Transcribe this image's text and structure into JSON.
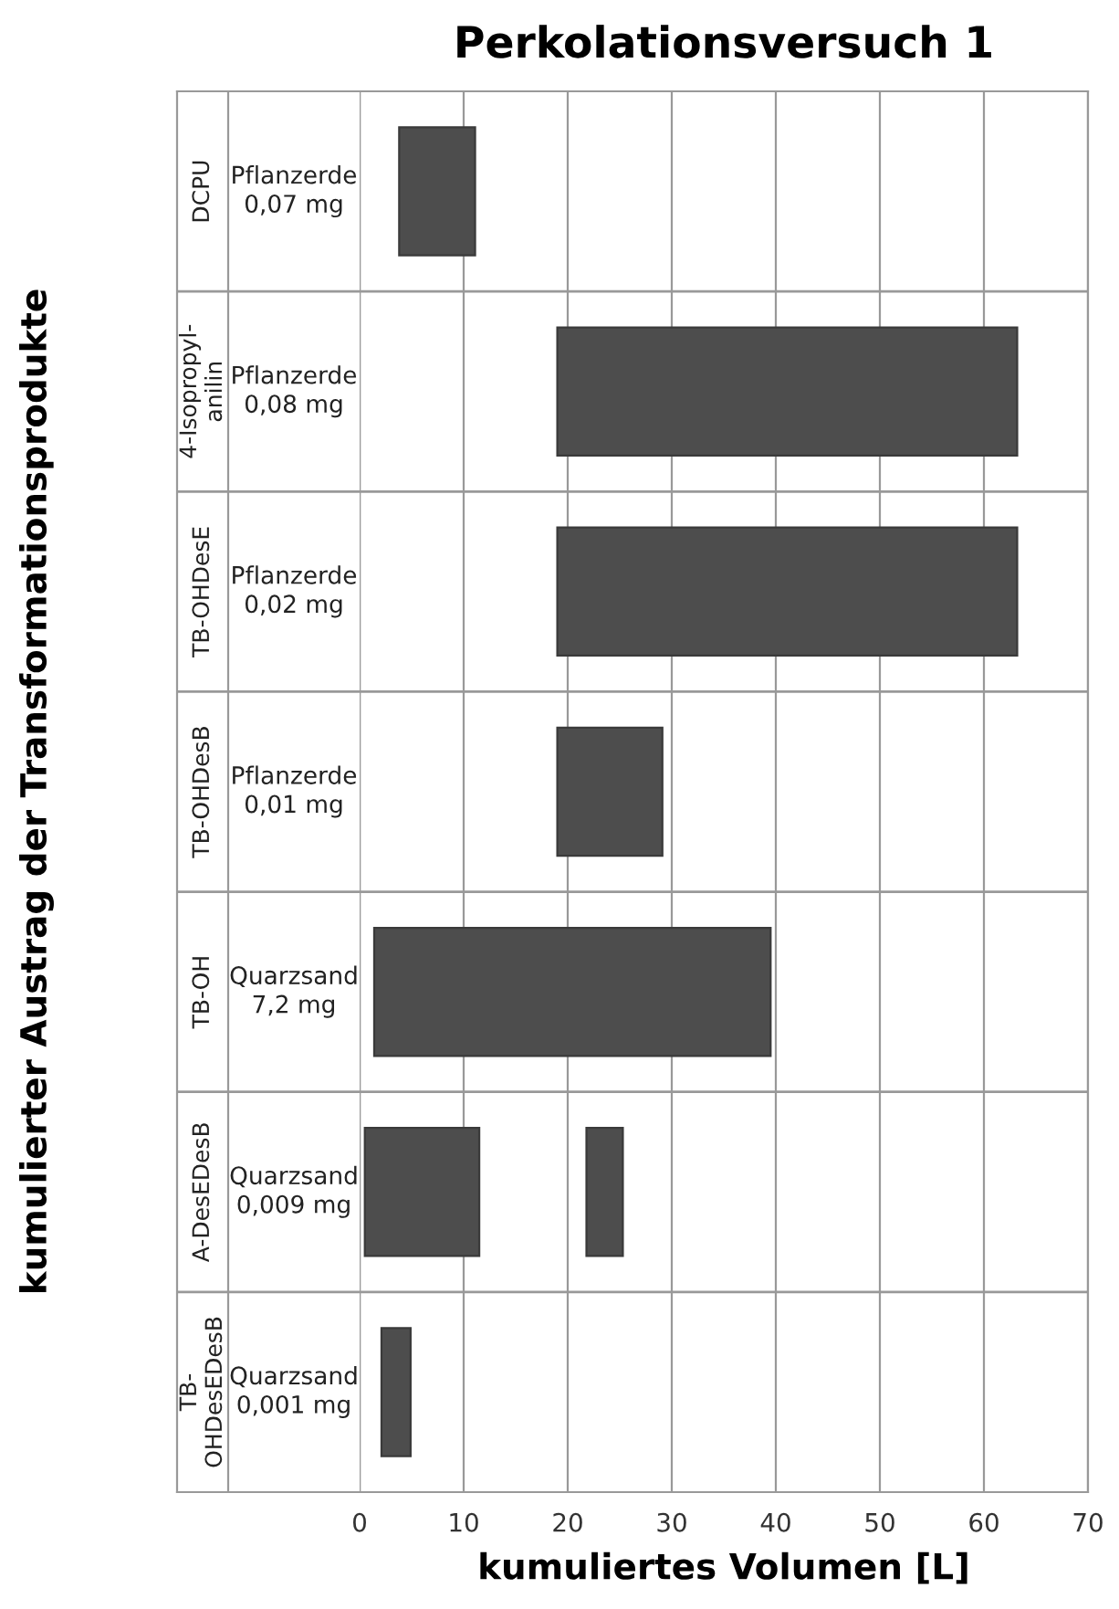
{
  "chart_data": {
    "type": "bar",
    "orientation": "horizontal",
    "title": "Perkolationsversuch 1",
    "xlabel": "kumuliertes Volumen [L]",
    "ylabel": "kumulierter Austrag der Transformationsprodukte",
    "categories": [
      "DCPU",
      "4-Isopropyl-\nanilin",
      "TB-OHDesE",
      "TB-OHDesB",
      "TB-OH",
      "A-DesEDesB",
      "TB-\nOHDesEDesB"
    ],
    "series": [
      {
        "color": "#4d4d4d",
        "base": [
          3.8,
          19.0,
          19.0,
          19.0,
          1.4,
          0.5,
          2.1
        ],
        "values": [
          7.3,
          44.2,
          44.2,
          10.1,
          38.1,
          11.0,
          2.8
        ]
      },
      {
        "color": "#4d4d4d",
        "base": [
          null,
          null,
          null,
          null,
          null,
          21.8,
          null
        ],
        "values": [
          null,
          null,
          null,
          null,
          null,
          3.5,
          null
        ]
      }
    ],
    "annotations": [
      "Pflanzerde\n0,07 mg",
      "Pflanzerde\n0,08 mg",
      "Pflanzerde\n0,02 mg",
      "Pflanzerde\n0,01 mg",
      "Quarzsand\n7,2 mg",
      "Quarzsand\n0,009 mg",
      "Quarzsand\n0,001 mg"
    ],
    "xlim": [
      0,
      70
    ],
    "xticks": [
      0,
      10,
      20,
      30,
      40,
      50,
      60,
      70
    ],
    "grid": "x"
  }
}
